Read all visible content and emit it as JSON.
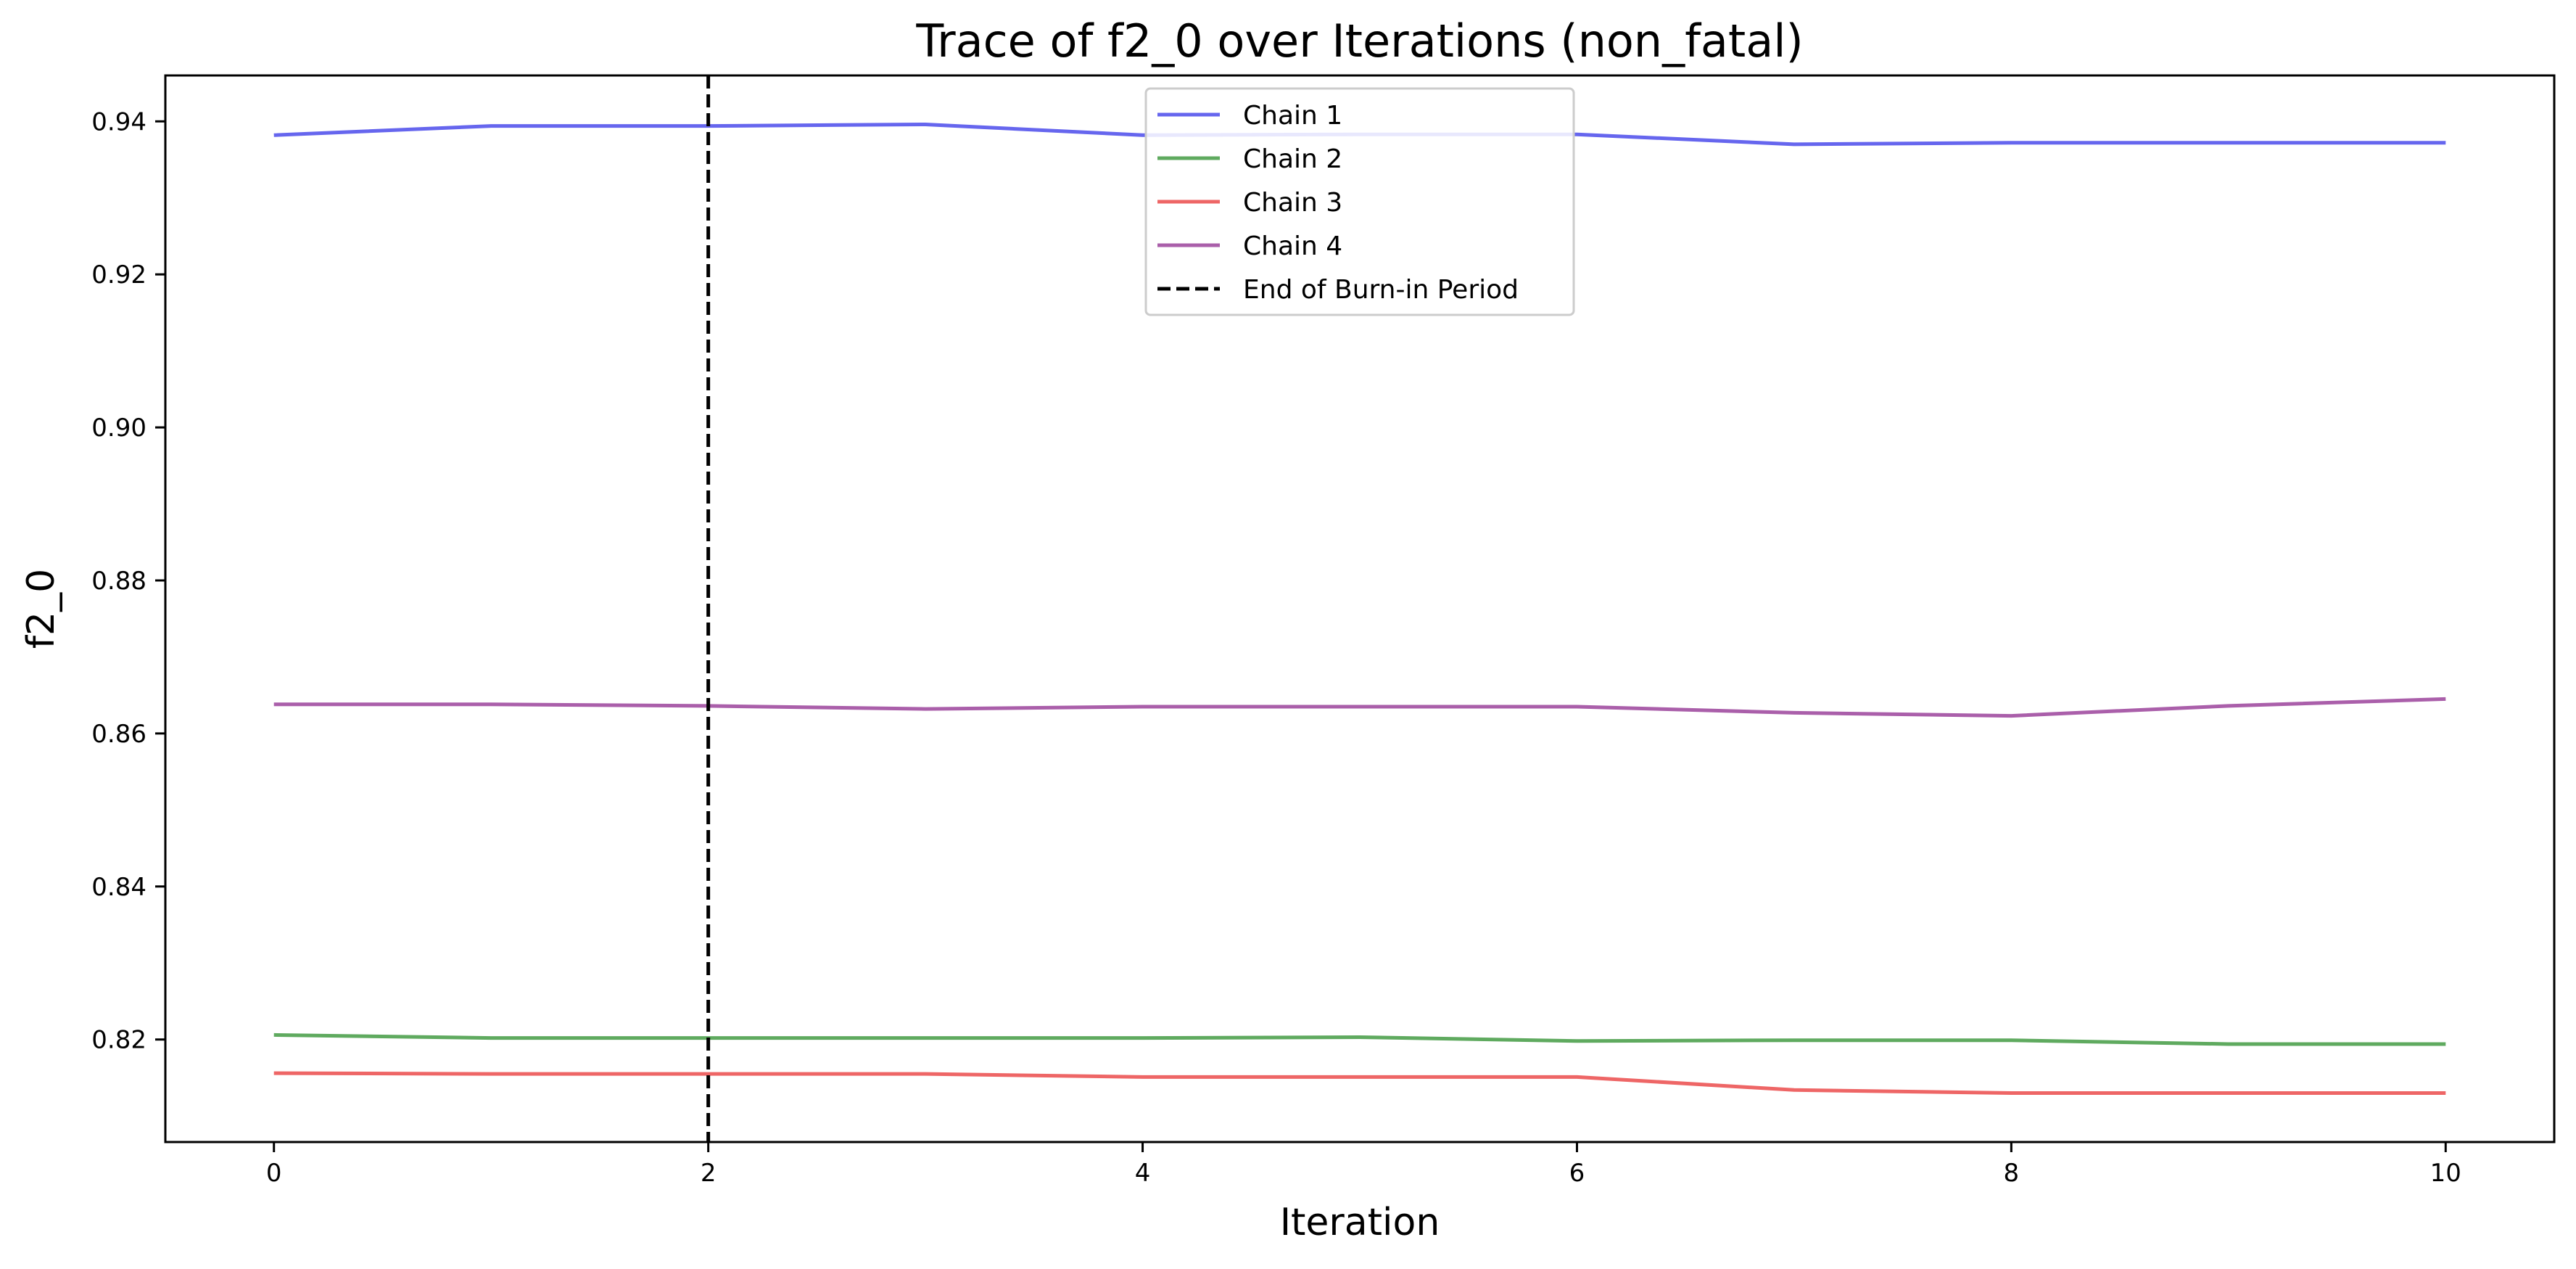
{
  "chart_data": {
    "type": "line",
    "title": "Trace of f2_0 over Iterations (non_fatal)",
    "xlabel": "Iteration",
    "ylabel": "f2_0",
    "xlim": [
      -0.5,
      10.5
    ],
    "ylim": [
      0.8066,
      0.946
    ],
    "xticks": [
      0,
      2,
      4,
      6,
      8,
      10
    ],
    "yticks": [
      0.82,
      0.84,
      0.86,
      0.88,
      0.9,
      0.92,
      0.94
    ],
    "ytick_labels": [
      "0.82",
      "0.84",
      "0.86",
      "0.88",
      "0.90",
      "0.92",
      "0.94"
    ],
    "grid": false,
    "legend_position": "upper-center",
    "x": [
      0,
      1,
      2,
      3,
      4,
      5,
      6,
      7,
      8,
      9,
      10
    ],
    "series": [
      {
        "name": "Chain 1",
        "color": "#6666ee",
        "values": [
          0.9382,
          0.9394,
          0.9394,
          0.9396,
          0.9382,
          0.9383,
          0.9383,
          0.937,
          0.9372,
          0.9372,
          0.9372
        ]
      },
      {
        "name": "Chain 2",
        "color": "#5faa5f",
        "values": [
          0.8206,
          0.8202,
          0.8202,
          0.8202,
          0.8202,
          0.8203,
          0.8198,
          0.8199,
          0.8199,
          0.8194,
          0.8194
        ]
      },
      {
        "name": "Chain 3",
        "color": "#ee6666",
        "values": [
          0.8156,
          0.8155,
          0.8155,
          0.8155,
          0.8151,
          0.8151,
          0.8151,
          0.8134,
          0.813,
          0.813,
          0.813
        ]
      },
      {
        "name": "Chain 4",
        "color": "#aa5faa",
        "values": [
          0.8638,
          0.8638,
          0.8636,
          0.8632,
          0.8635,
          0.8635,
          0.8635,
          0.8627,
          0.8623,
          0.8636,
          0.8645
        ]
      }
    ],
    "vline": {
      "x": 2,
      "label": "End of Burn-in Period",
      "color": "#000000",
      "style": "dashed"
    }
  }
}
